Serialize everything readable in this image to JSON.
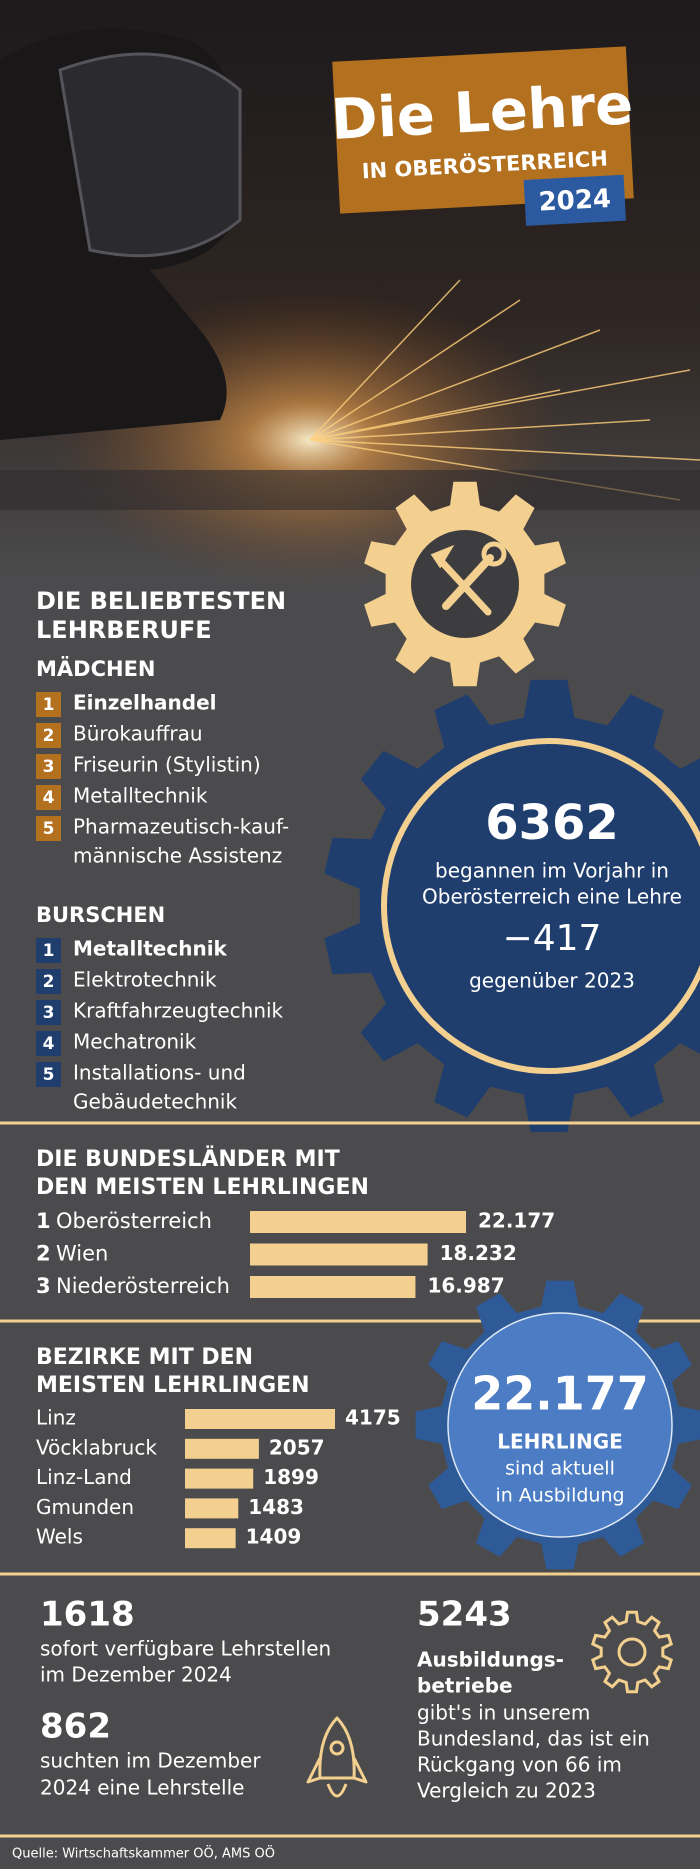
{
  "header": {
    "title": "Die Lehre",
    "subtitle": "IN OBERÖSTERREICH",
    "year": "2024"
  },
  "popular": {
    "title_lines": [
      "DIE BELIEBTESTEN",
      "LEHRBERUFE"
    ],
    "groups": [
      {
        "name": "MÄDCHEN",
        "items": [
          {
            "rank": "1",
            "lines": [
              "Einzelhandel"
            ]
          },
          {
            "rank": "2",
            "lines": [
              "Bürokauffrau"
            ]
          },
          {
            "rank": "3",
            "lines": [
              "Friseurin (Stylistin)"
            ]
          },
          {
            "rank": "4",
            "lines": [
              "Metalltechnik"
            ]
          },
          {
            "rank": "5",
            "lines": [
              "Pharmazeutisch-kauf-",
              "männische Assistenz"
            ]
          }
        ]
      },
      {
        "name": "BURSCHEN",
        "items": [
          {
            "rank": "1",
            "lines": [
              "Metalltechnik"
            ]
          },
          {
            "rank": "2",
            "lines": [
              "Elektrotechnik"
            ]
          },
          {
            "rank": "3",
            "lines": [
              "Kraftfahrzeugtechnik"
            ]
          },
          {
            "rank": "4",
            "lines": [
              "Mechatronik"
            ]
          },
          {
            "rank": "5",
            "lines": [
              "Installations- und",
              "Gebäudetechnik"
            ]
          }
        ]
      }
    ]
  },
  "starts": {
    "number": "6362",
    "lines": [
      "begannen im Vorjahr in",
      "Oberösterreich eine Lehre"
    ],
    "change": "−417",
    "change_label": "gegenüber 2023"
  },
  "states": {
    "title_lines": [
      "DIE BUNDESLÄNDER MIT",
      "DEN MEISTEN LEHRLINGEN"
    ],
    "ranks": [
      "1",
      "2",
      "3"
    ],
    "categories": [
      "Oberösterreich",
      "Wien",
      "Niederösterreich"
    ],
    "values": [
      22177,
      18232,
      16987
    ],
    "value_labels": [
      "22.177",
      "18.232",
      "16.987"
    ]
  },
  "districts": {
    "title_lines": [
      "BEZIRKE MIT DEN",
      "MEISTEN LEHRLINGEN"
    ],
    "categories": [
      "Linz",
      "Vöcklabruck",
      "Linz-Land",
      "Gmunden",
      "Wels"
    ],
    "values": [
      4175,
      2057,
      1899,
      1483,
      1409
    ]
  },
  "apprentices": {
    "number": "22.177",
    "label": "LEHRLINGE",
    "lines": [
      "sind aktuell",
      "in Ausbildung"
    ]
  },
  "stats": [
    {
      "number": "1618",
      "lines": [
        "sofort verfügbare Lehrstellen",
        "im Dezember 2024"
      ]
    },
    {
      "number": "862",
      "lines": [
        "suchten im Dezember",
        "2024 eine Lehrstelle"
      ]
    },
    {
      "number": "5243",
      "bold_lines": [
        "Ausbildungs-",
        "betriebe"
      ],
      "lines": [
        "gibt's in unserem",
        "Bundesland, das ist ein",
        "Rückgang von 66 im",
        "Vergleich zu 2023"
      ]
    }
  ],
  "source": "Quelle: Wirtschaftskammer OÖ, AMS OÖ"
}
